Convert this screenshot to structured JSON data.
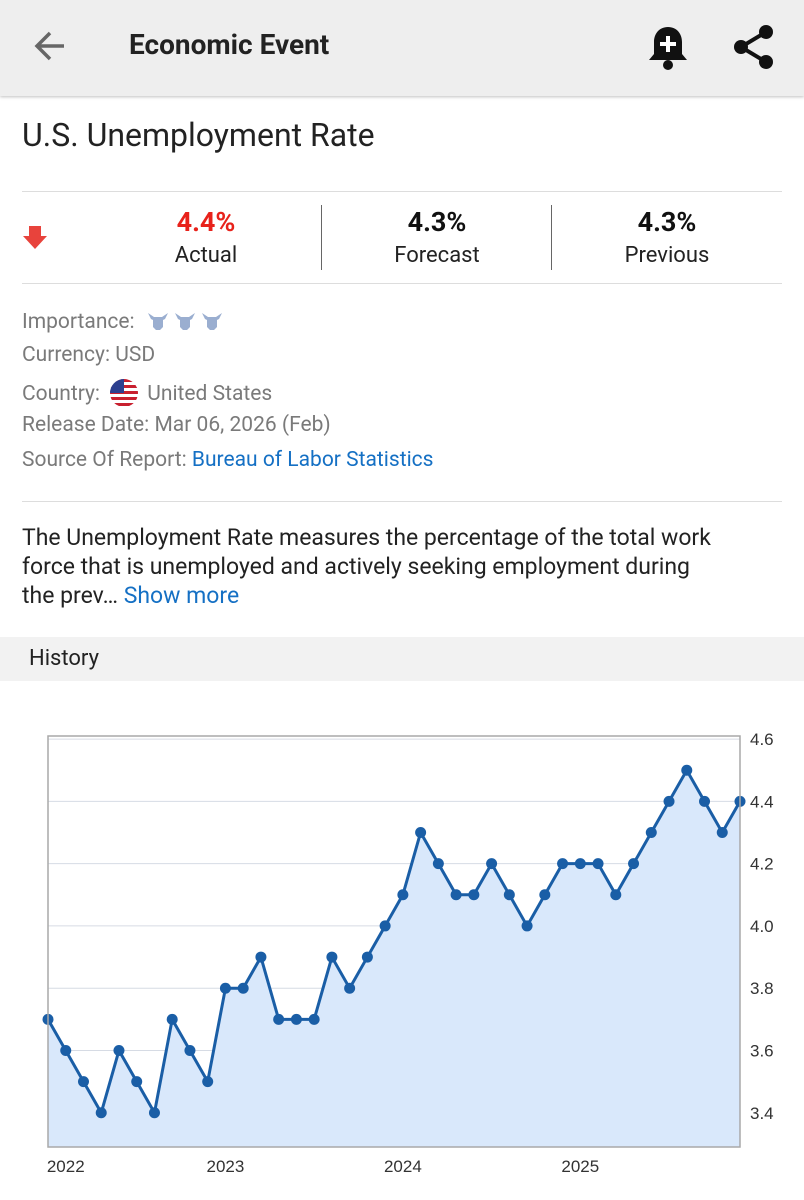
{
  "header": {
    "title": "Economic Event"
  },
  "event": {
    "title": "U.S. Unemployment Rate",
    "stats": [
      {
        "value": "4.4%",
        "label": "Actual"
      },
      {
        "value": "4.3%",
        "label": "Forecast"
      },
      {
        "value": "4.3%",
        "label": "Previous"
      }
    ]
  },
  "details": [
    {
      "label": "Importance:"
    },
    {
      "label": "Currency:",
      "value": "USD"
    },
    {
      "label": "Country:",
      "value": "United States"
    },
    {
      "label": "Release Date:",
      "value": "Mar 06, 2026 (Feb)"
    },
    {
      "label": "Source Of Report:",
      "value": "Bureau of Labor Statistics"
    }
  ],
  "description": {
    "lines": [
      "The Unemployment Rate measures the percentage of the total work",
      "force that is unemployed and actively seeking employment during",
      "the prev…"
    ],
    "link": "Show more"
  },
  "history": {
    "title": "History"
  },
  "chart_data": {
    "type": "line",
    "categories": [
      null,
      "2022",
      null,
      null,
      null,
      null,
      null,
      null,
      null,
      null,
      "2023",
      null,
      null,
      null,
      null,
      null,
      null,
      null,
      null,
      null,
      "2024",
      null,
      null,
      null,
      null,
      null,
      null,
      null,
      null,
      null,
      "2025",
      null,
      null,
      null,
      null,
      null,
      null,
      null,
      null,
      null
    ],
    "series": [
      {
        "color": "#1a5ea6",
        "fill": "#d9e8fb",
        "values": [
          3.7,
          3.6,
          3.5,
          3.4,
          3.6,
          3.5,
          3.4,
          3.7,
          3.6,
          3.5,
          3.8,
          3.8,
          3.9,
          3.7,
          3.7,
          3.7,
          3.9,
          3.8,
          3.9,
          4.0,
          4.1,
          4.3,
          4.2,
          4.1,
          4.1,
          4.2,
          4.1,
          4.0,
          4.1,
          4.2,
          4.2,
          4.2,
          4.1,
          4.2,
          4.3,
          4.4,
          4.5,
          4.4,
          4.3,
          4.4
        ]
      }
    ],
    "ylim": [
      3.29,
      4.61
    ],
    "yticks": [
      3.4,
      3.6,
      3.8,
      {
        "value": 4,
        "label": "4.0"
      },
      4.2,
      4.4,
      4.6
    ],
    "yaxis_position": "right",
    "grid": true
  }
}
